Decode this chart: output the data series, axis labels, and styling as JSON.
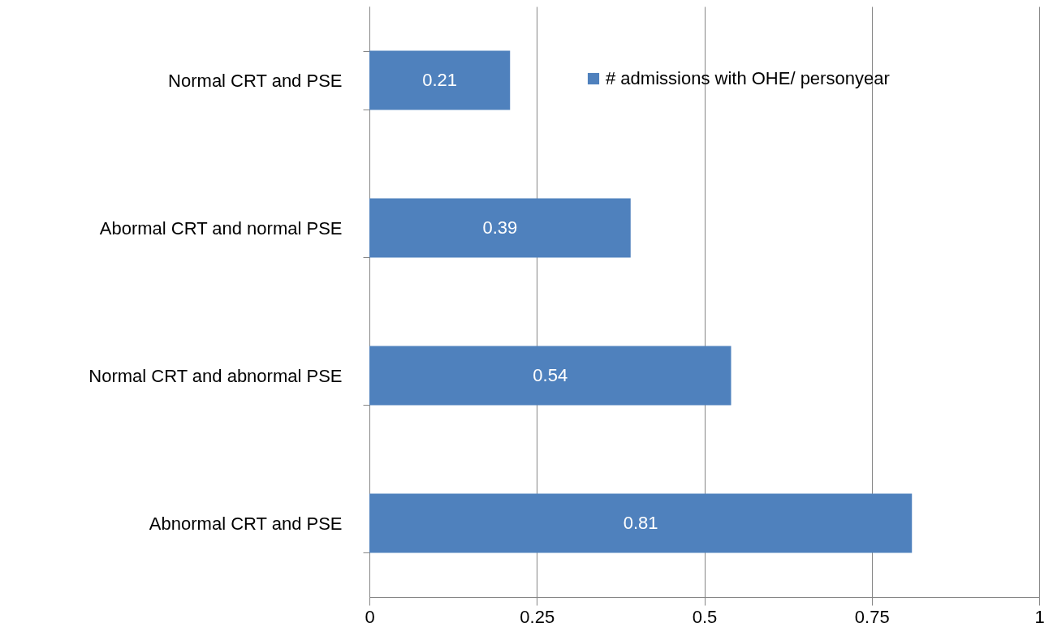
{
  "chart_data": {
    "type": "bar",
    "orientation": "horizontal",
    "categories": [
      "Normal CRT and PSE",
      "Abormal CRT and normal PSE",
      "Normal CRT and abnormal PSE",
      "Abnormal CRT and PSE"
    ],
    "series": [
      {
        "name": "# admissions with OHE/ personyear",
        "color": "#4f81bd",
        "values": [
          0.21,
          0.39,
          0.54,
          0.81
        ]
      }
    ],
    "xlim": [
      0,
      1
    ],
    "xticks": [
      0,
      0.25,
      0.5,
      0.75,
      1
    ],
    "grid": "x",
    "legend": "top right",
    "data_labels": true
  }
}
